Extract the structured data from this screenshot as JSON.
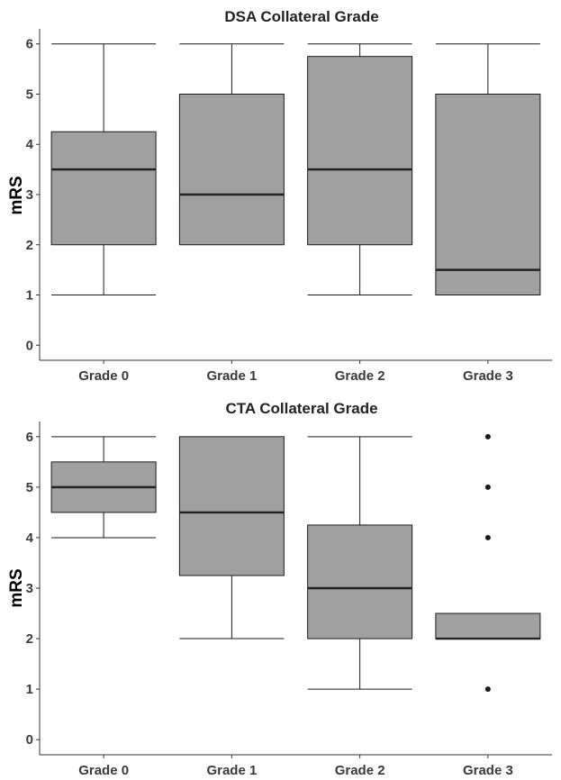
{
  "chart_data": [
    {
      "type": "box",
      "title": "DSA Collateral Grade",
      "xlabel": "",
      "ylabel": "mRS",
      "ylim": [
        -0.3,
        6.3
      ],
      "yticks": [
        "0",
        "1",
        "2",
        "3",
        "4",
        "5",
        "6"
      ],
      "categories": [
        "Grade 0",
        "Grade 1",
        "Grade 2",
        "Grade 3"
      ],
      "boxes": [
        {
          "min": 1,
          "q1": 2,
          "median": 3.5,
          "q3": 4.25,
          "max": 6,
          "outliers": []
        },
        {
          "min": 2,
          "q1": 2,
          "median": 3,
          "q3": 5,
          "max": 6,
          "outliers": []
        },
        {
          "min": 1,
          "q1": 2,
          "median": 3.5,
          "q3": 5.75,
          "max": 6,
          "outliers": []
        },
        {
          "min": 1,
          "q1": 1,
          "median": 1.5,
          "q3": 5,
          "max": 6,
          "outliers": []
        }
      ],
      "box_color": "#a0a0a0",
      "grid": false
    },
    {
      "type": "box",
      "title": "CTA Collateral Grade",
      "xlabel": "",
      "ylabel": "mRS",
      "ylim": [
        -0.3,
        6.3
      ],
      "yticks": [
        "0",
        "1",
        "2",
        "3",
        "4",
        "5",
        "6"
      ],
      "categories": [
        "Grade 0",
        "Grade 1",
        "Grade 2",
        "Grade 3"
      ],
      "boxes": [
        {
          "min": 4,
          "q1": 4.5,
          "median": 5,
          "q3": 5.5,
          "max": 6,
          "outliers": []
        },
        {
          "min": 2,
          "q1": 3.25,
          "median": 4.5,
          "q3": 6,
          "max": 6,
          "outliers": []
        },
        {
          "min": 1,
          "q1": 2,
          "median": 3,
          "q3": 4.25,
          "max": 6,
          "outliers": []
        },
        {
          "min": 2,
          "q1": 2,
          "median": 2,
          "q3": 2.5,
          "max": 2.5,
          "outliers": [
            1,
            4,
            5,
            6
          ]
        }
      ],
      "box_color": "#a0a0a0",
      "grid": false
    }
  ]
}
